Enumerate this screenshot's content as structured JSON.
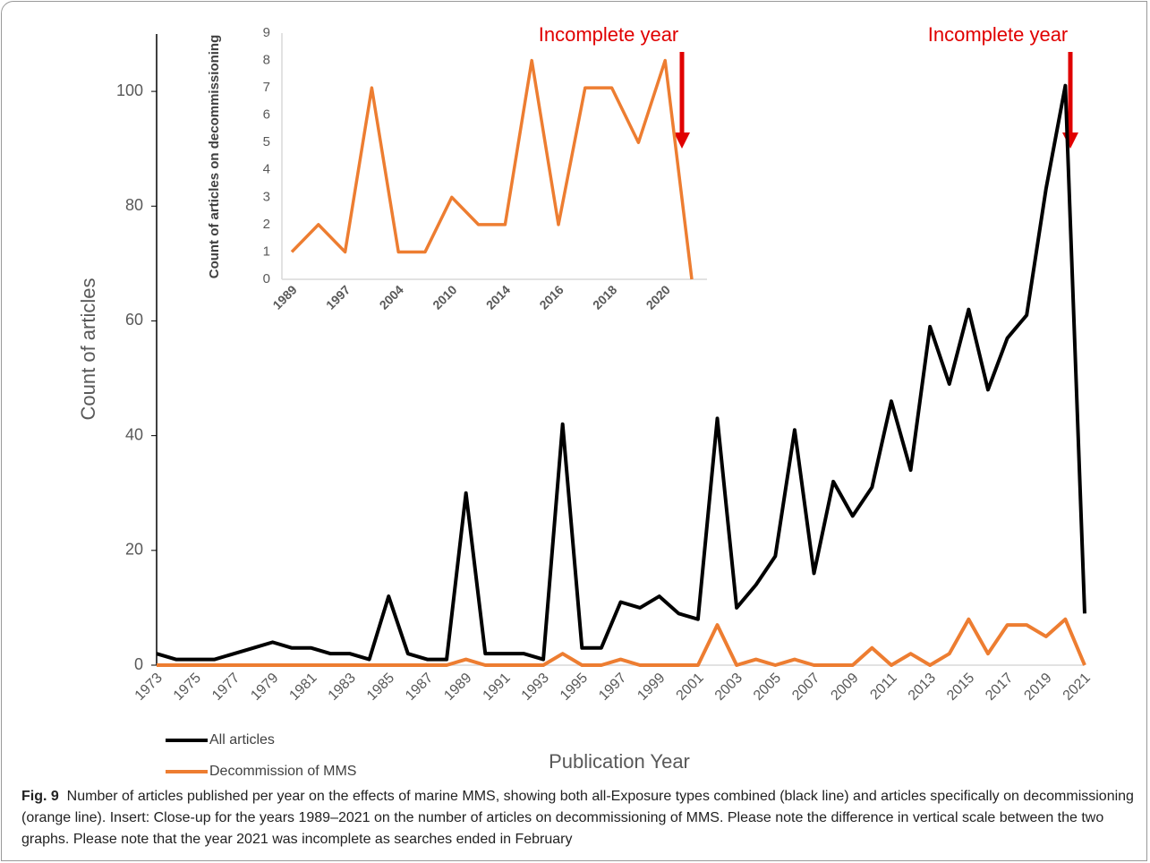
{
  "chart_data": [
    {
      "type": "line",
      "ylabel": "Count of articles",
      "xlabel": "Publication Year",
      "annotation": "Incomplete year",
      "categories": [
        "1973",
        null,
        "1975",
        null,
        "1977",
        null,
        "1979",
        null,
        "1981",
        null,
        "1983",
        null,
        "1985",
        null,
        "1987",
        null,
        "1989",
        null,
        "1991",
        null,
        "1993",
        null,
        "1995",
        null,
        "1997",
        null,
        "1999",
        null,
        "2001",
        null,
        "2003",
        null,
        "2005",
        null,
        "2007",
        null,
        "2009",
        null,
        "2011",
        null,
        "2013",
        null,
        "2015",
        null,
        "2017",
        null,
        "2019",
        null,
        "2021"
      ],
      "series": [
        {
          "name": "All articles",
          "color": "#000000",
          "values": [
            2,
            1,
            1,
            1,
            2,
            3,
            4,
            3,
            3,
            2,
            2,
            1,
            12,
            2,
            1,
            1,
            30,
            2,
            2,
            2,
            1,
            42,
            3,
            3,
            11,
            10,
            12,
            9,
            8,
            43,
            10,
            14,
            19,
            41,
            16,
            32,
            26,
            31,
            46,
            34,
            59,
            49,
            62,
            48,
            57,
            61,
            83,
            101,
            9
          ]
        },
        {
          "name": "Decommission of MMS",
          "color": "#ed7d31",
          "values": [
            0,
            0,
            0,
            0,
            0,
            0,
            0,
            0,
            0,
            0,
            0,
            0,
            0,
            0,
            0,
            0,
            1,
            0,
            0,
            0,
            0,
            2,
            0,
            0,
            1,
            0,
            0,
            0,
            0,
            7,
            0,
            1,
            0,
            1,
            0,
            0,
            0,
            3,
            0,
            2,
            0,
            2,
            8,
            2,
            7,
            7,
            5,
            8,
            0
          ]
        }
      ],
      "ylim": [
        0,
        110
      ],
      "yticks": [
        0,
        20,
        40,
        60,
        80,
        100
      ]
    },
    {
      "type": "line",
      "ylabel": "Count of articles on decommissioning",
      "annotation": "Incomplete year",
      "categories": [
        "1989",
        null,
        "1997",
        null,
        "2004",
        null,
        "2010",
        null,
        "2014",
        null,
        "2016",
        null,
        "2018",
        null,
        "2020",
        null
      ],
      "series": [
        {
          "name": "Decommission of MMS",
          "color": "#ed7d31",
          "values": [
            1,
            2,
            1,
            7,
            1,
            1,
            3,
            2,
            2,
            8,
            2,
            7,
            7,
            5,
            8,
            0
          ]
        }
      ],
      "ylim": [
        0,
        9
      ],
      "yticks": [
        0,
        1,
        2,
        3,
        4,
        5,
        6,
        7,
        8,
        9
      ]
    }
  ],
  "caption_label": "Fig. 9",
  "caption": "Number of articles published per year on the effects of marine MMS, showing both all-Exposure types combined (black line) and articles specifically on decommissioning (orange line). Insert: Close-up for the years 1989–2021 on the number of articles on decommissioning of MMS. Please note the difference in vertical scale between the two graphs. Please note that the year 2021 was incomplete as searches ended in February"
}
